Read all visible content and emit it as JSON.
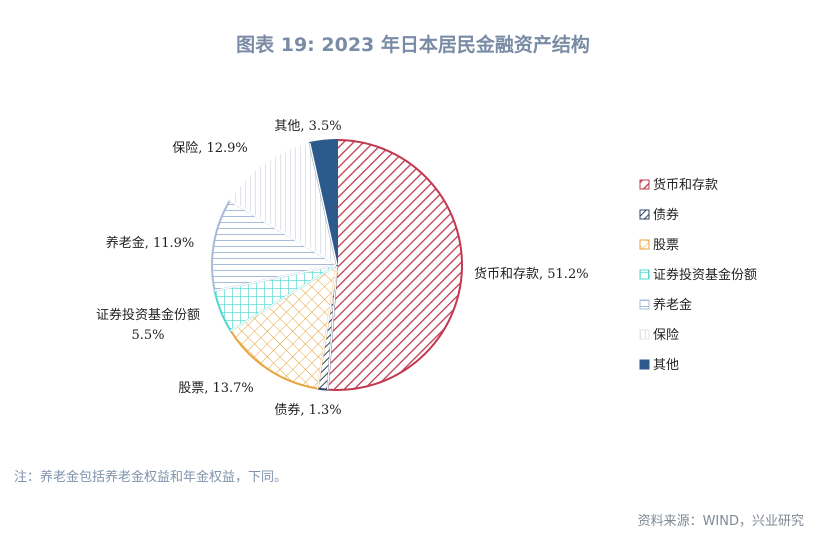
{
  "title": "图表 19: 2023 年日本居民金融资产结构",
  "note": "注：养老金包括养老金权益和年金权益，下同。",
  "source": "资料来源：WIND，兴业研究",
  "chart_data": {
    "type": "pie",
    "title": "图表 19: 2023 年日本居民金融资产结构",
    "unit": "%",
    "slices": [
      {
        "name": "货币和存款",
        "value": 51.2,
        "label": "货币和存款, 51.2%",
        "color": "#c0394f",
        "pattern": "diagonal"
      },
      {
        "name": "债券",
        "value": 1.3,
        "label": "债券, 1.3%",
        "color": "#2f4462",
        "pattern": "diagonal"
      },
      {
        "name": "股票",
        "value": 13.7,
        "label": "股票, 13.7%",
        "color": "#e8a33a",
        "pattern": "crosshatch"
      },
      {
        "name": "证券投资基金份额",
        "value": 5.5,
        "label": "证券投资基金份额, 5.5%",
        "color": "#4fd8cf",
        "pattern": "grid"
      },
      {
        "name": "养老金",
        "value": 11.9,
        "label": "养老金, 11.9%",
        "color": "#a7bcd6",
        "pattern": "horizontal"
      },
      {
        "name": "保险",
        "value": 12.9,
        "label": "保险, 12.9%",
        "color": "#e0e4ea",
        "pattern": "vertical"
      },
      {
        "name": "其他",
        "value": 3.5,
        "label": "其他, 3.5%",
        "color": "#2c5a8c",
        "pattern": "solid"
      }
    ],
    "legend": {
      "position": "right",
      "items": [
        "货币和存款",
        "债券",
        "股票",
        "证券投资基金份额",
        "养老金",
        "保险",
        "其他"
      ]
    }
  }
}
